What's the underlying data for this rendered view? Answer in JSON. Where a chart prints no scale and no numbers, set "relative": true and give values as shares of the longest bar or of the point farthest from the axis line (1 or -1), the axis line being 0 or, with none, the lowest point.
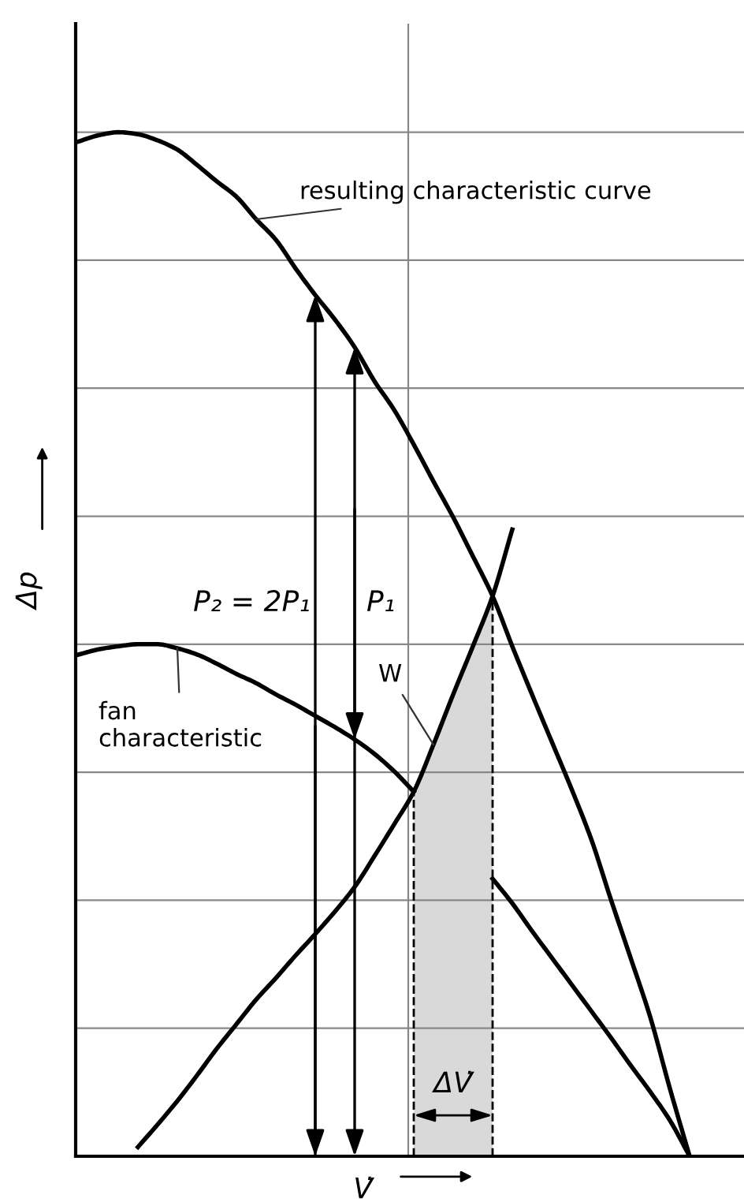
{
  "chart_data": {
    "type": "line",
    "relative": true,
    "xlabel": "V̇",
    "ylabel": "Δp",
    "grid": true,
    "legend": false,
    "marker": "none",
    "line_style": "solid",
    "categories": [
      null,
      null,
      null,
      null,
      null,
      null,
      null,
      null,
      null,
      null,
      null,
      null,
      null,
      null,
      null,
      null,
      null,
      null,
      null,
      null,
      null,
      null,
      null,
      null,
      null,
      null,
      null,
      null,
      null,
      null,
      null,
      null
    ],
    "series": [
      {
        "name": "resulting characteristic curve",
        "color": "#000000",
        "values": [
          0.991,
          0.997,
          1.0,
          0.998,
          0.992,
          0.983,
          0.968,
          0.952,
          0.937,
          0.915,
          0.895,
          0.867,
          0.841,
          0.817,
          0.79,
          0.757,
          0.729,
          0.695,
          0.659,
          0.624,
          0.586,
          0.547,
          0.498,
          0.451,
          0.405,
          0.359,
          0.31,
          0.251,
          0.194,
          0.136,
          0.066,
          0.0
        ]
      },
      {
        "name": "fan\ncharacteristic",
        "color": "#000000",
        "values": [
          0.49,
          0.495,
          0.498,
          0.5,
          0.5,
          0.496,
          0.49,
          0.481,
          0.471,
          0.462,
          0.451,
          0.441,
          0.43,
          0.419,
          0.407,
          0.393,
          0.376,
          0.356,
          null,
          null,
          null,
          0.271,
          0.247,
          0.22,
          0.194,
          0.168,
          0.142,
          0.116,
          0.089,
          0.063,
          0.035,
          0.0
        ]
      },
      {
        "name": "W",
        "color": "#000000",
        "values": [
          null,
          null,
          null,
          0.009,
          0.031,
          0.054,
          0.079,
          0.105,
          0.129,
          0.153,
          0.174,
          0.196,
          0.217,
          0.239,
          0.263,
          0.293,
          0.324,
          0.356,
          0.402,
          0.451,
          0.498,
          0.547,
          0.612,
          null,
          null,
          null,
          null,
          null,
          null,
          null,
          null,
          null
        ]
      },
      {
        "type": "area",
        "color": "#d9d9d9",
        "values": [
          null,
          null,
          null,
          null,
          null,
          null,
          null,
          null,
          null,
          null,
          null,
          null,
          null,
          null,
          null,
          null,
          null,
          0.356,
          0.402,
          0.451,
          0.498,
          0.547,
          null,
          null,
          null,
          null,
          null,
          null,
          null,
          null,
          null,
          null
        ]
      }
    ],
    "annotations": [
      "P₂ = 2P₁",
      "P₁",
      "ΔV̇"
    ]
  }
}
